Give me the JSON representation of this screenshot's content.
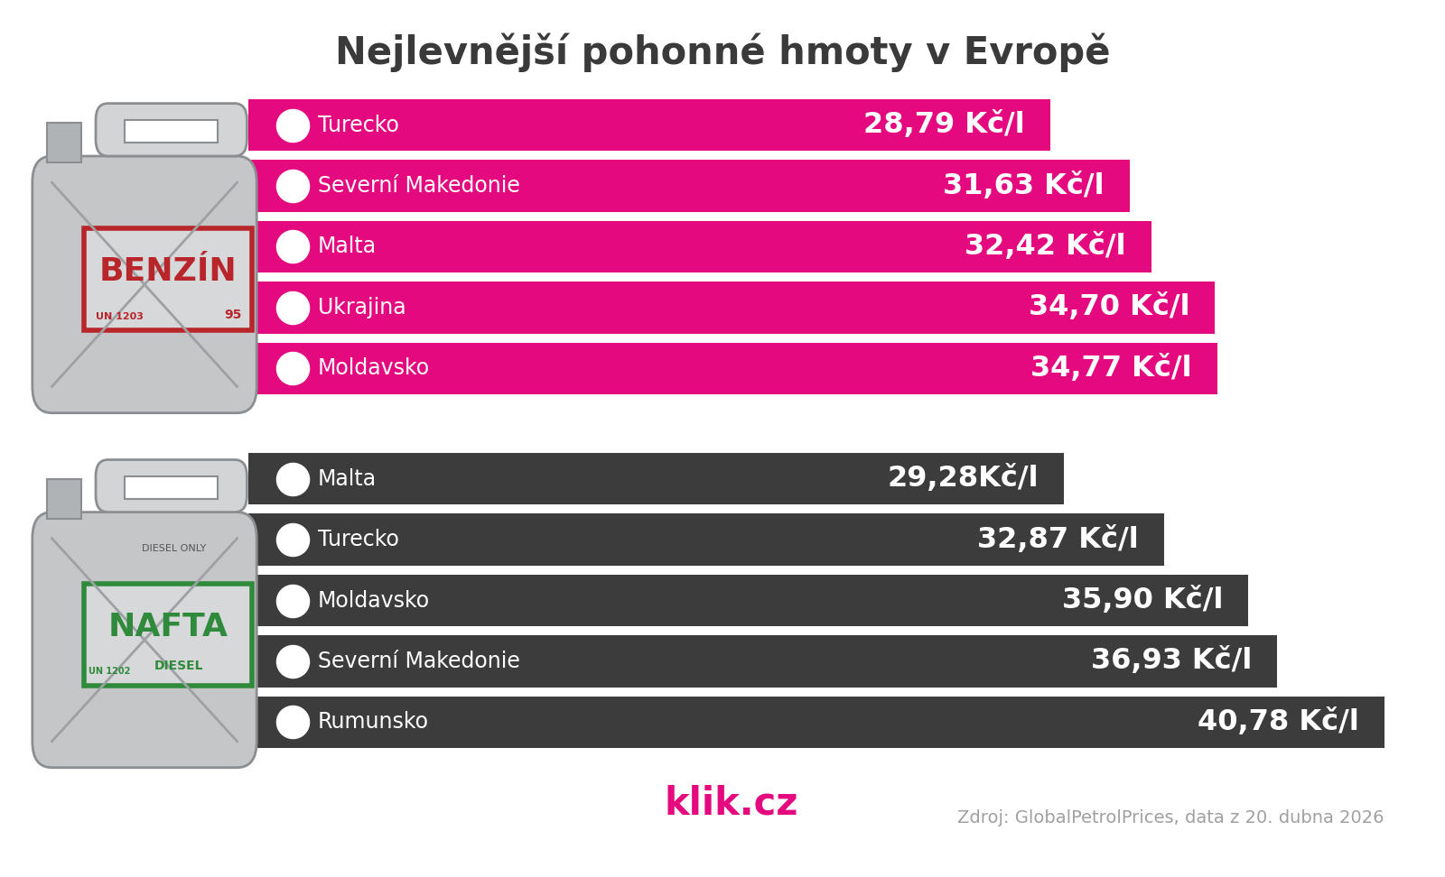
{
  "title": "Nejlevnější pohonné hmoty v Evropě",
  "brand": "klik.cz",
  "source": "Zdroj: GlobalPetrolPrices, data z 20. dubna 2026",
  "chart_data": [
    {
      "type": "bar",
      "orientation": "horizontal",
      "label": "BENZÍN",
      "can_texts": [
        "BENZÍN",
        "UN 1203",
        "95"
      ],
      "categories": [
        "Turecko",
        "Severní Makedonie",
        "Malta",
        "Ukrajina",
        "Moldavsko"
      ],
      "values": [
        28.79,
        31.63,
        32.42,
        34.7,
        34.77
      ],
      "value_labels": [
        "28,79 Kč/l",
        "31,63 Kč/l",
        "32,42 Kč/l",
        "34,70 Kč/l",
        "34,77 Kč/l"
      ],
      "color": "#e5097f",
      "xlim": [
        0,
        41.5
      ],
      "data_labels": true,
      "tick_labels": false,
      "grid": false
    },
    {
      "type": "bar",
      "orientation": "horizontal",
      "label": "NAFTA",
      "can_texts": [
        "NAFTA",
        "DIESEL",
        "UN 1202",
        "DIESEL ONLY"
      ],
      "categories": [
        "Malta",
        "Turecko",
        "Moldavsko",
        "Severní Makedonie",
        "Rumunsko"
      ],
      "values": [
        29.28,
        32.87,
        35.9,
        36.93,
        40.78
      ],
      "value_labels": [
        "29,28Kč/l",
        "32,87 Kč/l",
        "35,90 Kč/l",
        "36,93 Kč/l",
        "40,78 Kč/l"
      ],
      "color": "#3d3c3d",
      "xlim": [
        0,
        41.5
      ],
      "data_labels": true,
      "tick_labels": false,
      "grid": false
    }
  ]
}
